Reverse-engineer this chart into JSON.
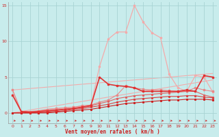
{
  "x": [
    0,
    1,
    2,
    3,
    4,
    5,
    6,
    7,
    8,
    9,
    10,
    11,
    12,
    13,
    14,
    15,
    16,
    17,
    18,
    19,
    20,
    21,
    22,
    23
  ],
  "line1": [
    3.2,
    0.2,
    0.1,
    0.2,
    0.5,
    0.6,
    0.7,
    0.8,
    0.9,
    1.0,
    6.5,
    10.3,
    11.3,
    11.3,
    15.0,
    12.7,
    11.2,
    10.5,
    5.4,
    3.5,
    3.0,
    5.2,
    5.0,
    2.9
  ],
  "line2": [
    2.5,
    0.2,
    0.1,
    0.2,
    0.3,
    0.4,
    0.5,
    0.6,
    0.8,
    1.0,
    5.0,
    4.0,
    3.8,
    3.7,
    3.5,
    3.0,
    3.0,
    3.0,
    3.0,
    3.0,
    3.2,
    3.0,
    5.2,
    5.0
  ],
  "line3": [
    3.2,
    0.2,
    0.2,
    0.3,
    0.5,
    0.6,
    0.7,
    0.8,
    1.0,
    1.1,
    1.5,
    1.8,
    2.5,
    3.8,
    3.5,
    3.3,
    3.2,
    3.2,
    3.1,
    3.0,
    3.0,
    3.5,
    3.2,
    3.0
  ],
  "line4": [
    0.0,
    0.0,
    0.0,
    0.1,
    0.2,
    0.3,
    0.5,
    0.6,
    0.8,
    1.0,
    1.3,
    1.6,
    2.0,
    2.2,
    2.4,
    2.5,
    2.6,
    2.7,
    2.8,
    2.9,
    3.0,
    3.0,
    2.5,
    2.2
  ],
  "line5": [
    0.0,
    0.0,
    0.0,
    0.0,
    0.1,
    0.2,
    0.3,
    0.5,
    0.6,
    0.8,
    1.0,
    1.2,
    1.5,
    1.7,
    1.9,
    2.0,
    2.1,
    2.2,
    2.3,
    2.3,
    2.4,
    2.4,
    2.2,
    2.1
  ],
  "line6": [
    0.0,
    0.0,
    0.0,
    0.0,
    0.0,
    0.1,
    0.2,
    0.3,
    0.4,
    0.5,
    0.7,
    0.9,
    1.1,
    1.3,
    1.4,
    1.5,
    1.6,
    1.7,
    1.8,
    1.8,
    1.9,
    1.9,
    1.9,
    1.8
  ],
  "line_diag1": [
    0.0,
    0.2,
    0.4,
    0.6,
    0.8,
    1.0,
    1.2,
    1.4,
    1.6,
    1.8,
    2.0,
    2.2,
    2.4,
    2.6,
    2.8,
    3.0,
    3.2,
    3.4,
    3.6,
    3.8,
    4.0,
    4.2,
    4.4,
    4.6
  ],
  "line_diag2": [
    3.2,
    3.3,
    3.4,
    3.5,
    3.6,
    3.7,
    3.8,
    3.9,
    4.0,
    4.1,
    4.2,
    4.3,
    4.4,
    4.5,
    4.6,
    4.7,
    4.8,
    4.9,
    5.0,
    5.1,
    5.2,
    5.3,
    5.4,
    5.5
  ],
  "xlim": [
    -0.5,
    23.5
  ],
  "ylim": [
    -1.5,
    15.5
  ],
  "yticks": [
    0,
    5,
    10,
    15
  ],
  "xticks": [
    0,
    1,
    2,
    3,
    4,
    5,
    6,
    7,
    8,
    9,
    10,
    11,
    12,
    13,
    14,
    15,
    16,
    17,
    18,
    19,
    20,
    21,
    22,
    23
  ],
  "xlabel": "Vent moyen/en rafales ( km/h )",
  "bgcolor": "#c8ecec",
  "grid_color": "#a8d4d4",
  "color_light_pink": "#f4aaaa",
  "color_medium_red": "#e03030",
  "color_pink": "#e88888",
  "color_red1": "#cc2020",
  "color_red2": "#d84040",
  "color_red3": "#e06060",
  "color_arrow": "#cc2020",
  "tick_color": "#cc2020",
  "label_color": "#cc2020",
  "spine_color": "#999999"
}
